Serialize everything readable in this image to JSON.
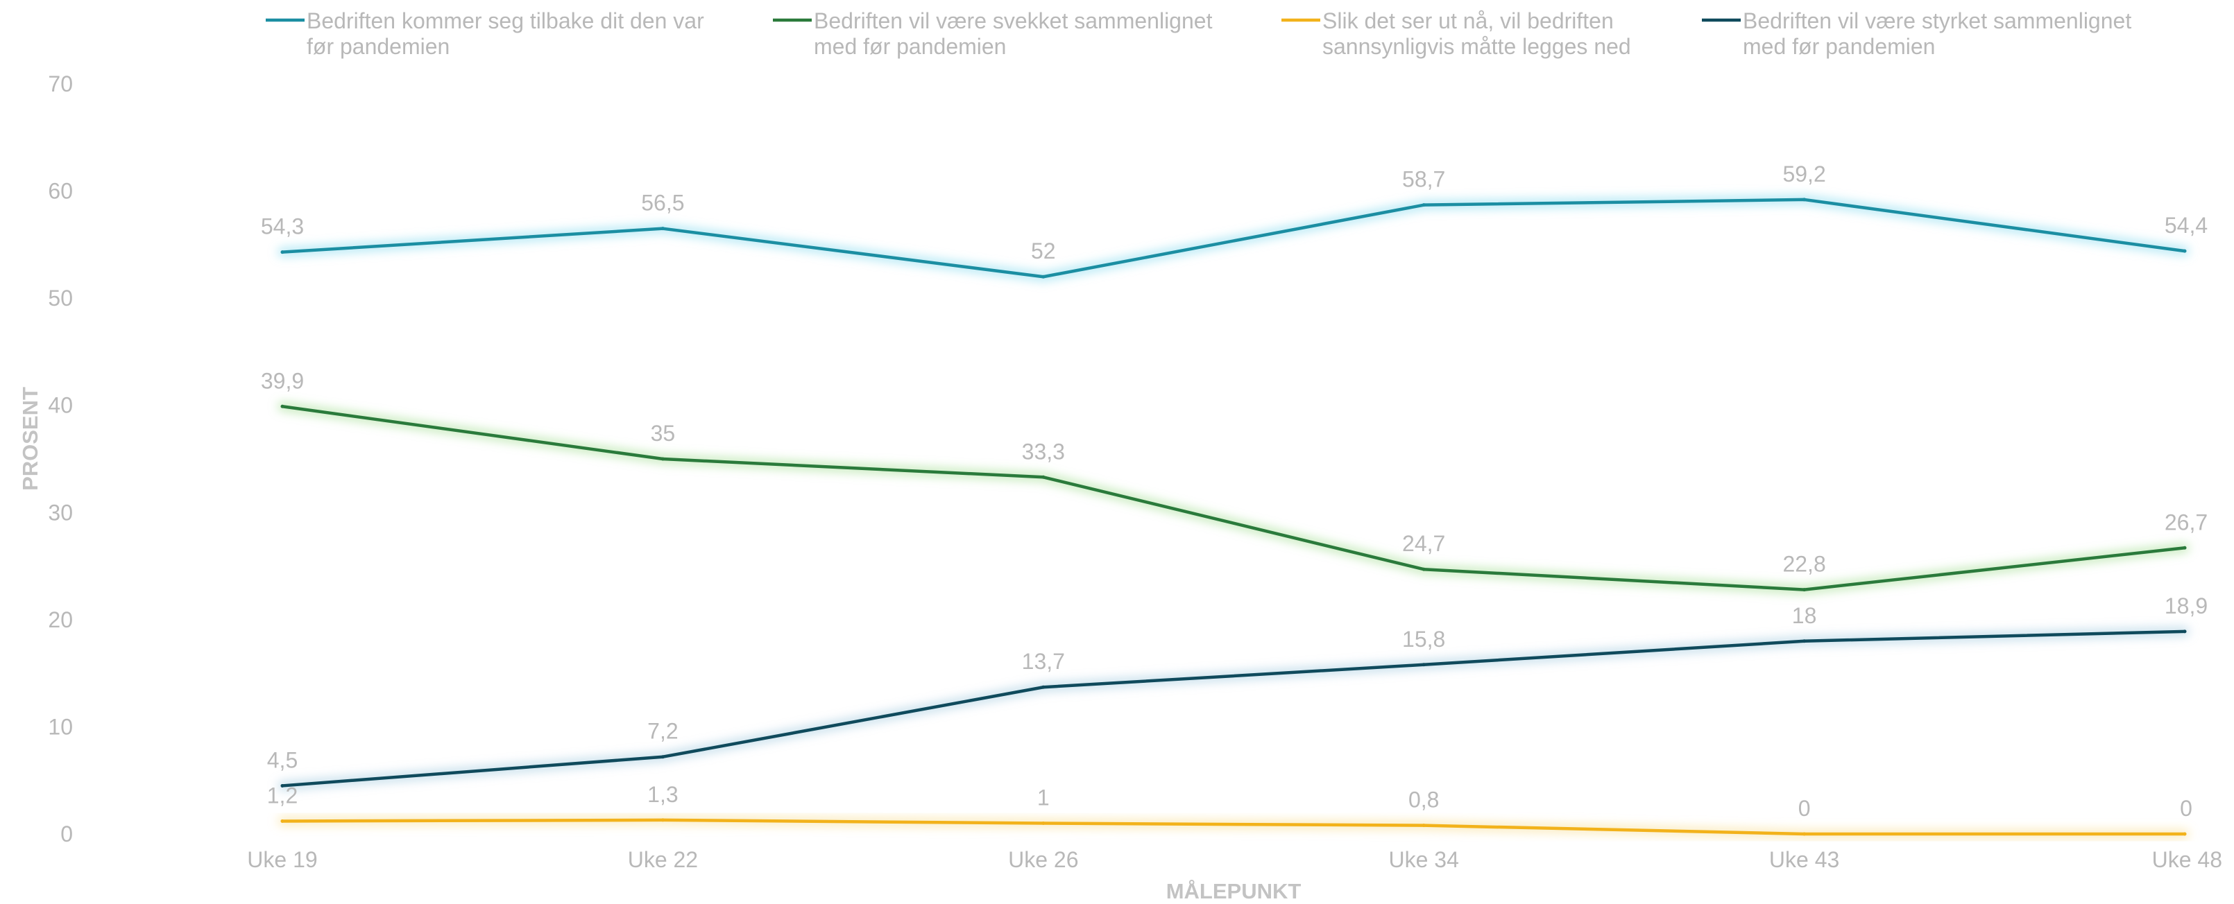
{
  "chart_data": {
    "type": "line",
    "categories": [
      "Uke 19",
      "Uke 22",
      "Uke 26",
      "Uke 34",
      "Uke 43",
      "Uke 48"
    ],
    "xlabel": "MÅLEPUNKT",
    "ylabel": "PROSENT",
    "ylim": [
      0,
      70
    ],
    "yticks": [
      "0",
      "10",
      "20",
      "30",
      "40",
      "50",
      "60",
      "70"
    ],
    "grid": false,
    "legend_position": "top",
    "series": [
      {
        "name": "Bedriften kommer seg tilbake dit den var før pandemien",
        "legend_lines": [
          "Bedriften kommer seg tilbake dit den var",
          "før pandemien"
        ],
        "color": "#1b8ea2",
        "glow": "#7fd8ef",
        "values": [
          54.3,
          56.5,
          52,
          58.7,
          59.2,
          54.4
        ],
        "labels": [
          "54,3",
          "56,5",
          "52",
          "58,7",
          "59,2",
          "54,4"
        ]
      },
      {
        "name": "Bedriften vil være svekket sammenlignet med før pandemien",
        "legend_lines": [
          "Bedriften vil være svekket sammenlignet",
          "med før pandemien"
        ],
        "color": "#2a7a3b",
        "glow": "#9fdc8c",
        "values": [
          39.9,
          35,
          33.3,
          24.7,
          22.8,
          26.7
        ],
        "labels": [
          "39,9",
          "35",
          "33,3",
          "24,7",
          "22,8",
          "26,7"
        ]
      },
      {
        "name": "Slik det ser ut nå, vil bedriften sannsynligvis måtte legges ned",
        "legend_lines": [
          "Slik det ser ut nå, vil bedriften",
          "sannsynligvis måtte legges ned"
        ],
        "color": "#f2b21b",
        "glow": "#f7de8f",
        "values": [
          1.2,
          1.3,
          1,
          0.8,
          0,
          0
        ],
        "labels": [
          "1,2",
          "1,3",
          "1",
          "0,8",
          "0",
          "0"
        ]
      },
      {
        "name": "Bedriften vil være styrket sammenlignet med før pandemien",
        "legend_lines": [
          "Bedriften vil være styrket sammenlignet",
          "med før pandemien"
        ],
        "color": "#0f4a5c",
        "glow": "#9ec7de",
        "values": [
          4.5,
          7.2,
          13.7,
          15.8,
          18,
          18.9
        ],
        "labels": [
          "4,5",
          "7,2",
          "13,7",
          "15,8",
          "18",
          "18,9"
        ]
      }
    ]
  }
}
